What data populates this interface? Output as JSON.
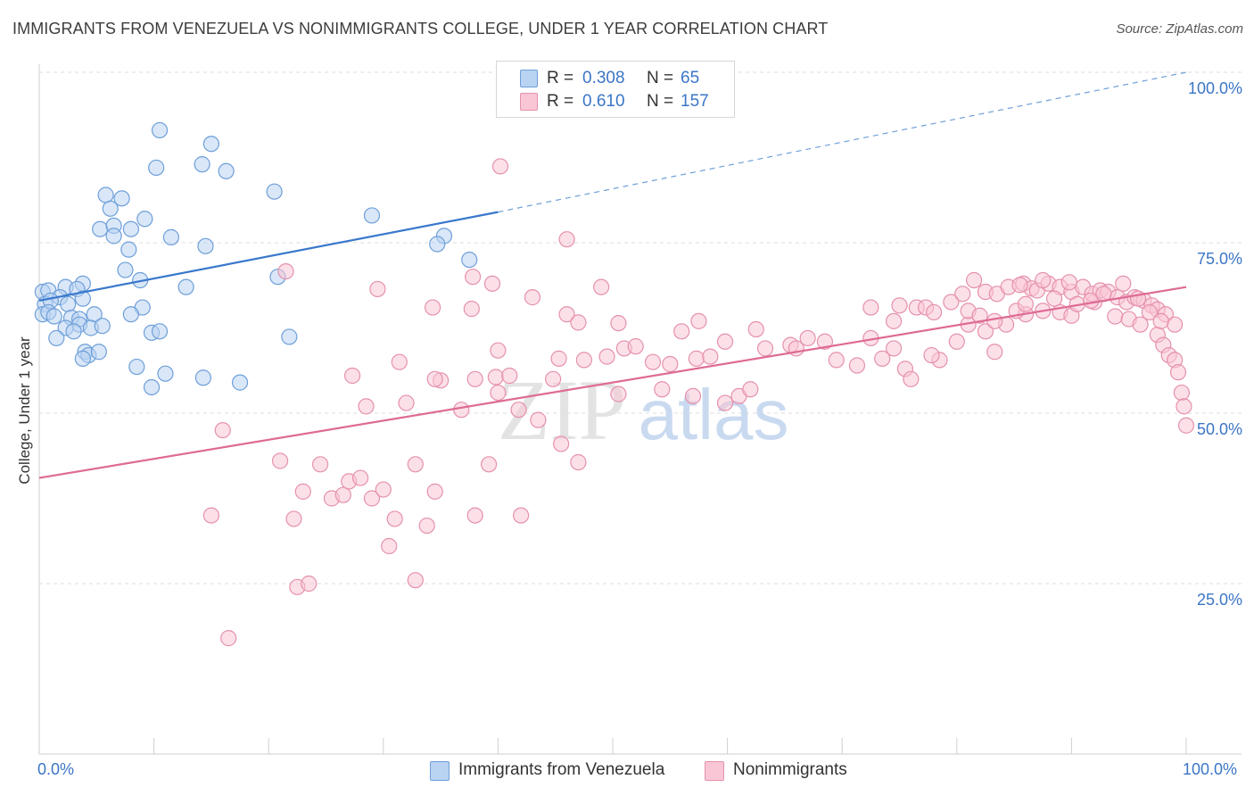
{
  "title": "IMMIGRANTS FROM VENEZUELA VS NONIMMIGRANTS COLLEGE, UNDER 1 YEAR CORRELATION CHART",
  "source": "Source: ZipAtlas.com",
  "watermark": {
    "zip": "ZIP",
    "atlas": "atlas"
  },
  "legend": {
    "r_label": "R =",
    "n_label": "N =",
    "series": [
      {
        "name": "Immigrants from Venezuela",
        "r": "0.308",
        "n": "65",
        "fill": "#b9d3f3",
        "stroke": "#6e9fd9"
      },
      {
        "name": "Nonimmigrants",
        "r": "0.610",
        "n": "157",
        "fill": "#f9c6d5",
        "stroke": "#e591ac"
      }
    ]
  },
  "chart_data": {
    "type": "scatter",
    "title": "IMMIGRANTS FROM VENEZUELA VS NONIMMIGRANTS COLLEGE, UNDER 1 YEAR CORRELATION CHART",
    "xlabel": "",
    "ylabel": "College, Under 1 year",
    "xlim": [
      0,
      100
    ],
    "ylim": [
      0,
      105
    ],
    "x_tick_labels": [
      "0.0%",
      "100.0%"
    ],
    "y_ticks": [
      25,
      50,
      75,
      100
    ],
    "y_tick_labels": [
      "25.0%",
      "50.0%",
      "75.0%",
      "100.0%"
    ],
    "grid": true,
    "legend_position": "top-center",
    "series": [
      {
        "name": "Immigrants from Venezuela",
        "color": "#6e9fd9",
        "fill": "#b9d3f3",
        "trend": {
          "x0": 0,
          "y0": 66.5,
          "x1": 40,
          "y1": 79.5,
          "dash_to_x": 100,
          "dash_to_y": 100
        },
        "points": [
          [
            10.5,
            91.5
          ],
          [
            15.0,
            89.5
          ],
          [
            10.2,
            86.0
          ],
          [
            14.2,
            86.5
          ],
          [
            16.3,
            85.5
          ],
          [
            20.5,
            82.5
          ],
          [
            5.8,
            82.0
          ],
          [
            7.2,
            81.5
          ],
          [
            6.2,
            80.0
          ],
          [
            9.2,
            78.5
          ],
          [
            29.0,
            79.0
          ],
          [
            5.3,
            77.0
          ],
          [
            6.5,
            77.5
          ],
          [
            8.0,
            77.0
          ],
          [
            6.5,
            76.0
          ],
          [
            11.5,
            75.8
          ],
          [
            35.3,
            76.0
          ],
          [
            14.5,
            74.5
          ],
          [
            7.8,
            74.0
          ],
          [
            34.7,
            74.8
          ],
          [
            37.5,
            72.5
          ],
          [
            7.5,
            71.0
          ],
          [
            20.8,
            70.0
          ],
          [
            3.8,
            69.0
          ],
          [
            8.8,
            69.5
          ],
          [
            12.8,
            68.5
          ],
          [
            0.3,
            67.8
          ],
          [
            0.8,
            68.0
          ],
          [
            2.3,
            68.5
          ],
          [
            3.3,
            68.2
          ],
          [
            1.8,
            67.0
          ],
          [
            0.5,
            66.0
          ],
          [
            1.0,
            66.5
          ],
          [
            2.5,
            66.0
          ],
          [
            3.8,
            66.8
          ],
          [
            9.0,
            65.5
          ],
          [
            0.3,
            64.5
          ],
          [
            0.8,
            64.8
          ],
          [
            1.3,
            64.2
          ],
          [
            2.8,
            64.0
          ],
          [
            3.5,
            63.8
          ],
          [
            4.8,
            64.5
          ],
          [
            8.0,
            64.5
          ],
          [
            3.5,
            63.0
          ],
          [
            2.3,
            62.5
          ],
          [
            4.5,
            62.5
          ],
          [
            3.0,
            62.0
          ],
          [
            5.5,
            62.8
          ],
          [
            9.8,
            61.8
          ],
          [
            10.5,
            62.0
          ],
          [
            21.8,
            61.2
          ],
          [
            1.5,
            61.0
          ],
          [
            4.0,
            59.0
          ],
          [
            4.3,
            58.5
          ],
          [
            5.2,
            59.0
          ],
          [
            3.8,
            58.0
          ],
          [
            8.5,
            56.8
          ],
          [
            11.0,
            55.8
          ],
          [
            14.3,
            55.2
          ],
          [
            17.5,
            54.5
          ],
          [
            9.8,
            53.8
          ]
        ]
      },
      {
        "name": "Nonimmigrants",
        "color": "#e591ac",
        "fill": "#f9c6d5",
        "trend": {
          "x0": 0,
          "y0": 40.5,
          "x1": 100,
          "y1": 68.5
        },
        "points": [
          [
            40.2,
            86.2
          ],
          [
            46.0,
            75.5
          ],
          [
            21.5,
            70.8
          ],
          [
            37.8,
            70.0
          ],
          [
            39.5,
            69.0
          ],
          [
            29.5,
            68.2
          ],
          [
            49.0,
            68.5
          ],
          [
            43.0,
            67.0
          ],
          [
            34.3,
            65.5
          ],
          [
            37.7,
            65.3
          ],
          [
            46.0,
            64.5
          ],
          [
            47.0,
            63.3
          ],
          [
            50.5,
            63.2
          ],
          [
            57.5,
            63.5
          ],
          [
            62.5,
            62.3
          ],
          [
            59.8,
            60.5
          ],
          [
            56.0,
            62.0
          ],
          [
            40.0,
            59.2
          ],
          [
            45.3,
            58.0
          ],
          [
            47.5,
            57.8
          ],
          [
            49.5,
            58.3
          ],
          [
            51.0,
            59.5
          ],
          [
            52.0,
            59.8
          ],
          [
            53.5,
            57.5
          ],
          [
            55.0,
            57.2
          ],
          [
            57.3,
            58.0
          ],
          [
            58.5,
            58.3
          ],
          [
            31.4,
            57.5
          ],
          [
            27.3,
            55.5
          ],
          [
            35.0,
            54.8
          ],
          [
            38.0,
            55.0
          ],
          [
            39.8,
            55.3
          ],
          [
            41.0,
            55.5
          ],
          [
            44.8,
            55.0
          ],
          [
            50.5,
            52.8
          ],
          [
            54.3,
            53.5
          ],
          [
            57.0,
            52.5
          ],
          [
            61.0,
            52.5
          ],
          [
            62.0,
            53.5
          ],
          [
            59.8,
            51.5
          ],
          [
            63.3,
            59.5
          ],
          [
            65.5,
            60.0
          ],
          [
            68.5,
            60.5
          ],
          [
            67.0,
            61.0
          ],
          [
            66.0,
            59.5
          ],
          [
            69.5,
            57.8
          ],
          [
            72.5,
            61.0
          ],
          [
            74.5,
            59.5
          ],
          [
            71.3,
            57.0
          ],
          [
            73.5,
            58.0
          ],
          [
            75.5,
            56.5
          ],
          [
            76.0,
            55.0
          ],
          [
            78.5,
            57.8
          ],
          [
            77.8,
            58.5
          ],
          [
            80.0,
            60.5
          ],
          [
            83.3,
            59.0
          ],
          [
            82.5,
            62.0
          ],
          [
            81.0,
            63.0
          ],
          [
            84.3,
            63.0
          ],
          [
            86.0,
            64.5
          ],
          [
            87.5,
            65.0
          ],
          [
            89.0,
            64.8
          ],
          [
            90.0,
            64.3
          ],
          [
            92.0,
            66.3
          ],
          [
            93.8,
            64.2
          ],
          [
            95.0,
            63.8
          ],
          [
            96.0,
            63.0
          ],
          [
            97.5,
            61.5
          ],
          [
            98.0,
            60.0
          ],
          [
            98.5,
            58.5
          ],
          [
            99.0,
            57.8
          ],
          [
            99.3,
            56.0
          ],
          [
            99.6,
            53.0
          ],
          [
            99.8,
            51.0
          ],
          [
            100.0,
            48.2
          ],
          [
            72.5,
            65.5
          ],
          [
            74.5,
            63.5
          ],
          [
            75.0,
            65.8
          ],
          [
            76.5,
            65.5
          ],
          [
            77.3,
            65.5
          ],
          [
            78.0,
            64.8
          ],
          [
            79.5,
            66.3
          ],
          [
            80.5,
            67.5
          ],
          [
            81.0,
            65.0
          ],
          [
            81.5,
            69.5
          ],
          [
            82.5,
            67.8
          ],
          [
            83.5,
            67.5
          ],
          [
            84.5,
            68.5
          ],
          [
            85.8,
            69.0
          ],
          [
            86.5,
            68.3
          ],
          [
            87.0,
            68.0
          ],
          [
            88.0,
            69.0
          ],
          [
            89.0,
            68.5
          ],
          [
            90.0,
            67.8
          ],
          [
            91.0,
            68.5
          ],
          [
            91.8,
            67.5
          ],
          [
            92.5,
            68.0
          ],
          [
            93.2,
            67.8
          ],
          [
            94.0,
            67.0
          ],
          [
            94.8,
            66.3
          ],
          [
            95.5,
            67.0
          ],
          [
            96.3,
            66.5
          ],
          [
            97.0,
            65.8
          ],
          [
            97.5,
            65.2
          ],
          [
            98.2,
            64.5
          ],
          [
            99.0,
            63.0
          ],
          [
            82.0,
            64.3
          ],
          [
            83.3,
            63.5
          ],
          [
            85.2,
            65.0
          ],
          [
            86.0,
            66.0
          ],
          [
            88.5,
            66.8
          ],
          [
            90.5,
            66.0
          ],
          [
            91.7,
            66.5
          ],
          [
            92.8,
            67.5
          ],
          [
            94.5,
            69.0
          ],
          [
            95.8,
            66.8
          ],
          [
            96.8,
            64.8
          ],
          [
            97.8,
            63.5
          ],
          [
            85.5,
            68.8
          ],
          [
            87.5,
            69.5
          ],
          [
            89.8,
            69.2
          ],
          [
            16.0,
            47.5
          ],
          [
            28.5,
            51.0
          ],
          [
            32.0,
            51.5
          ],
          [
            34.5,
            55.0
          ],
          [
            36.8,
            50.5
          ],
          [
            40.0,
            53.0
          ],
          [
            41.8,
            50.5
          ],
          [
            43.5,
            49.0
          ],
          [
            45.5,
            45.5
          ],
          [
            47.0,
            42.8
          ],
          [
            24.5,
            42.5
          ],
          [
            32.8,
            42.5
          ],
          [
            39.2,
            42.5
          ],
          [
            23.0,
            38.5
          ],
          [
            25.5,
            37.5
          ],
          [
            26.5,
            38.0
          ],
          [
            27.0,
            40.0
          ],
          [
            28.0,
            40.5
          ],
          [
            29.0,
            37.5
          ],
          [
            30.0,
            38.8
          ],
          [
            31.0,
            34.5
          ],
          [
            34.5,
            38.5
          ],
          [
            33.8,
            33.5
          ],
          [
            38.0,
            35.0
          ],
          [
            42.0,
            35.0
          ],
          [
            15.0,
            35.0
          ],
          [
            22.2,
            34.5
          ],
          [
            21.0,
            43.0
          ],
          [
            30.5,
            30.5
          ],
          [
            32.8,
            25.5
          ],
          [
            22.5,
            24.5
          ],
          [
            23.5,
            25.0
          ],
          [
            16.5,
            17.0
          ]
        ]
      }
    ]
  }
}
